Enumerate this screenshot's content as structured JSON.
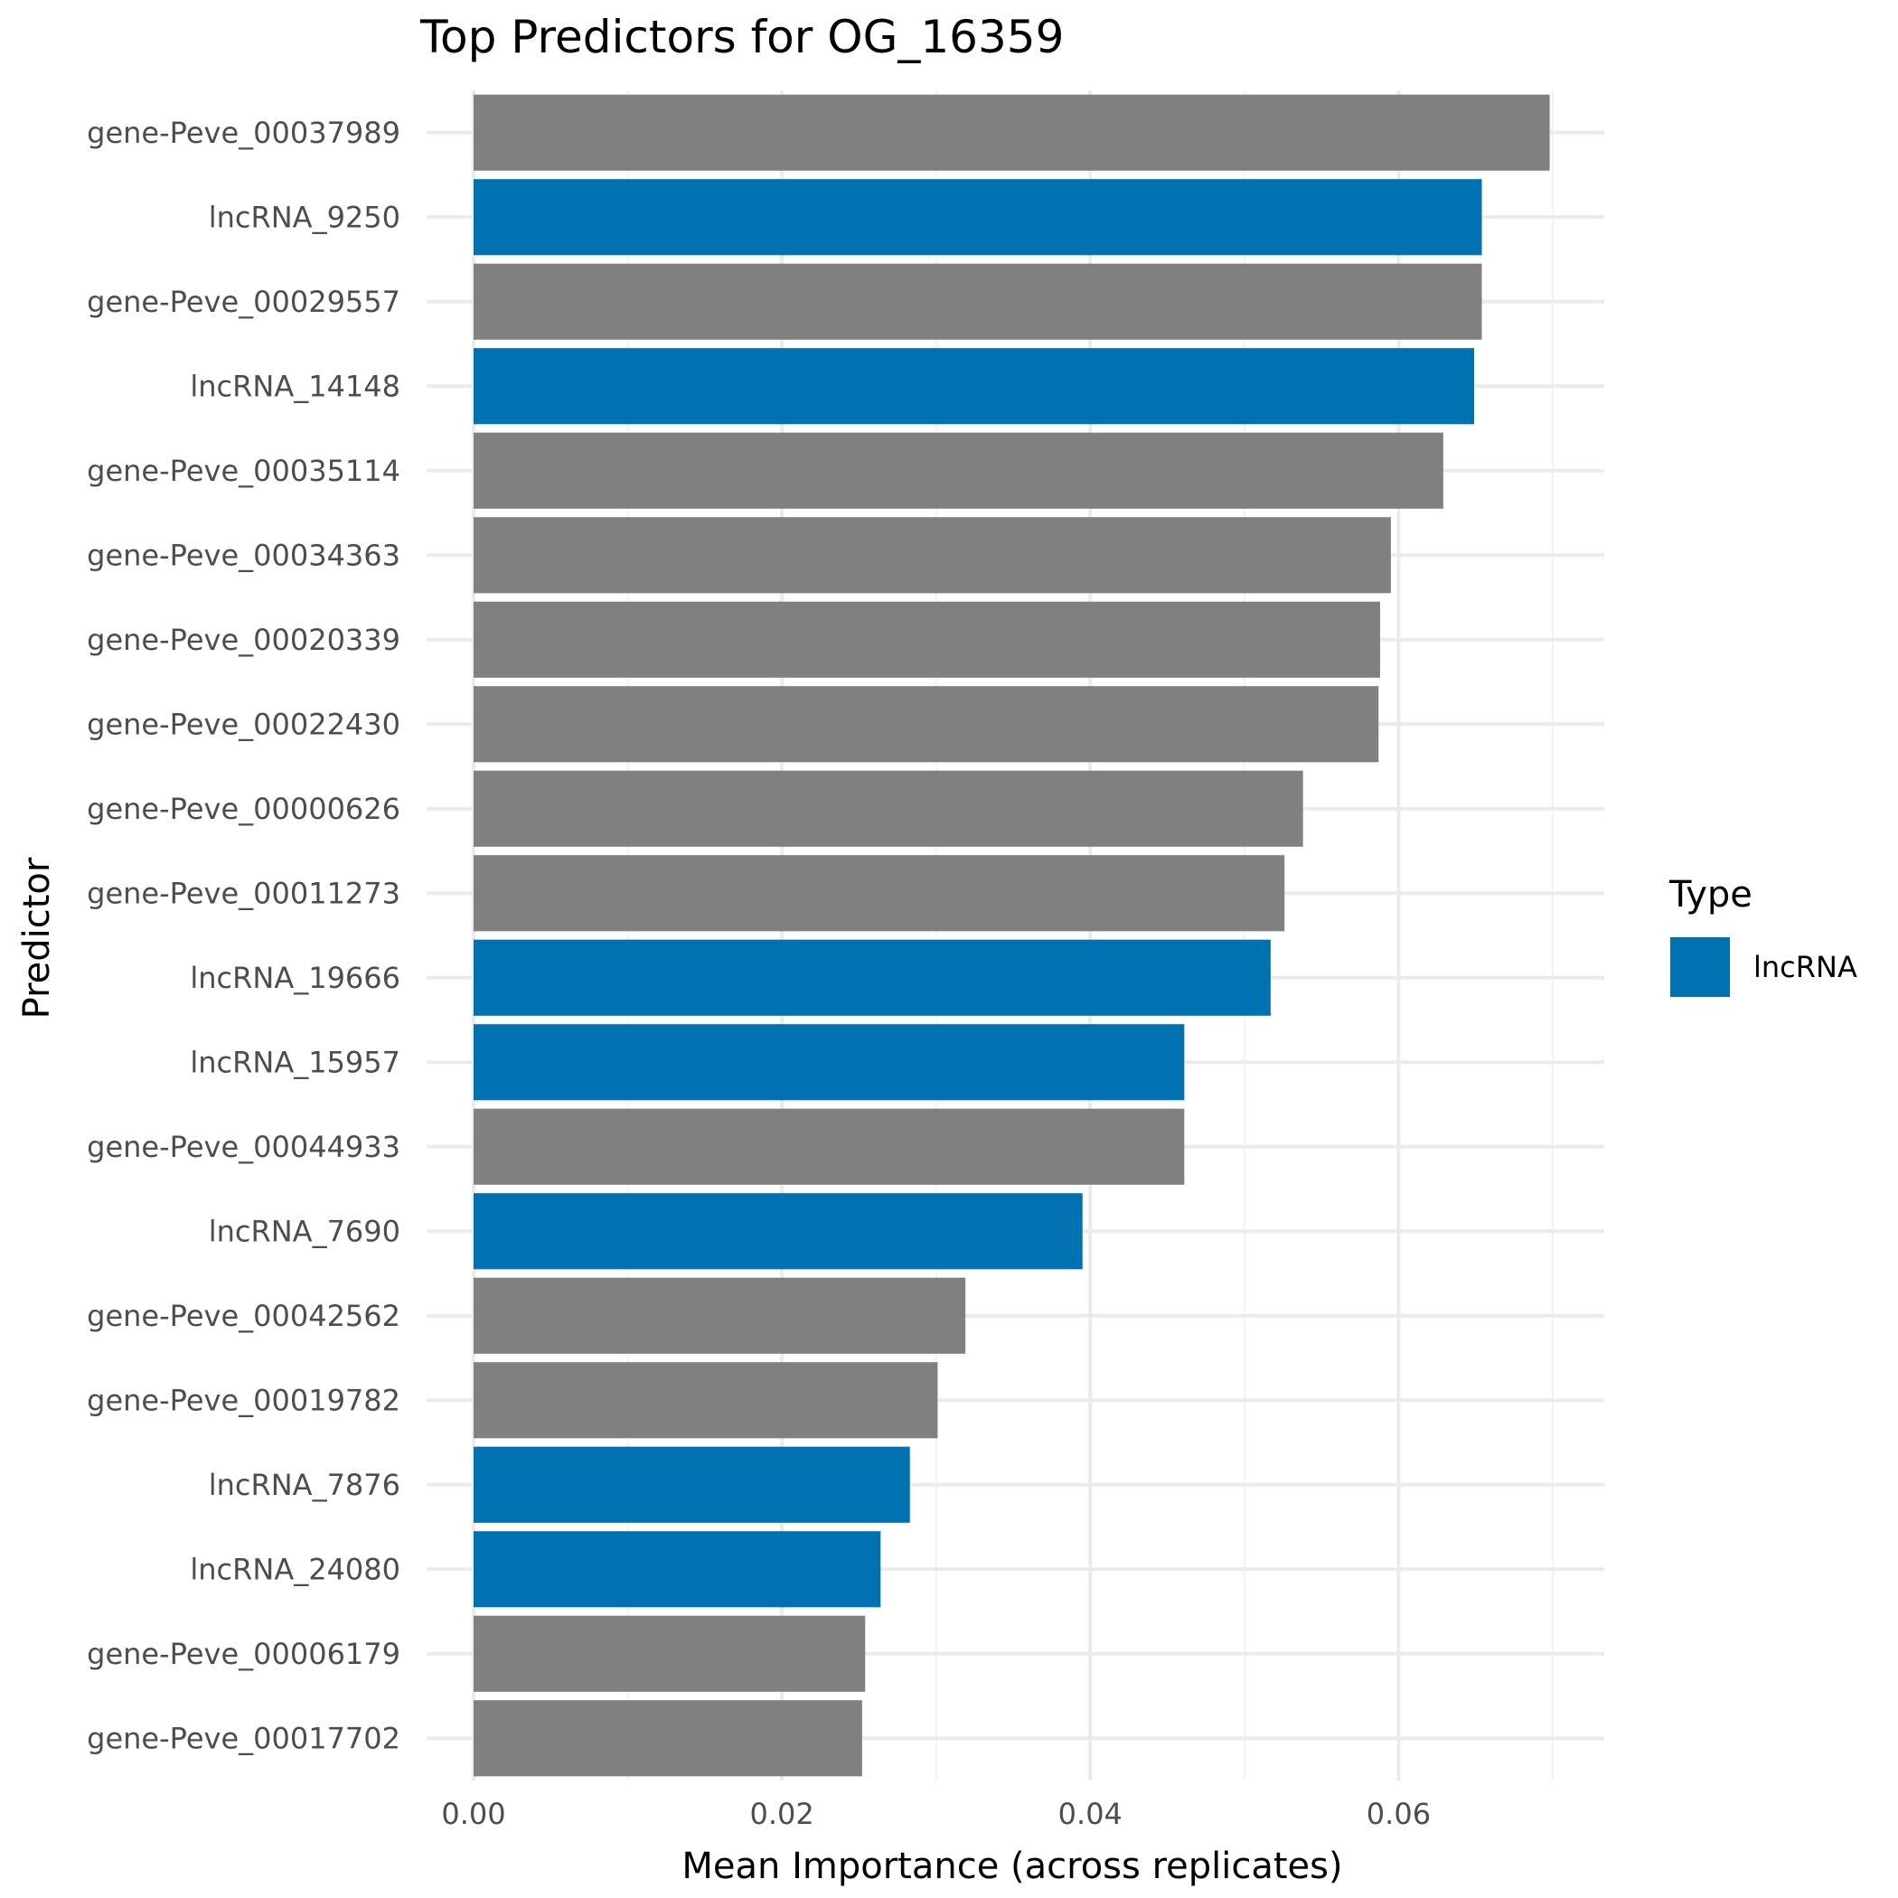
{
  "chart_data": {
    "type": "bar",
    "orientation": "horizontal",
    "title": "Top Predictors for OG_16359",
    "xlabel": "Mean Importance (across replicates)",
    "ylabel": "Predictor",
    "xlim": [
      0,
      0.0733
    ],
    "xticks": [
      0.0,
      0.02,
      0.04,
      0.06
    ],
    "xtick_labels": [
      "0.00",
      "0.02",
      "0.04",
      "0.06"
    ],
    "grid": true,
    "legend": {
      "title": "Type",
      "placement": "right",
      "entries": [
        {
          "label": "lncRNA",
          "color": "#0072B2"
        }
      ]
    },
    "colors": {
      "lncRNA": "#0072B2",
      "other": "#808080"
    },
    "categories": [
      "gene-Peve_00037989",
      "lncRNA_9250",
      "gene-Peve_00029557",
      "lncRNA_14148",
      "gene-Peve_00035114",
      "gene-Peve_00034363",
      "gene-Peve_00020339",
      "gene-Peve_00022430",
      "gene-Peve_00000626",
      "gene-Peve_00011273",
      "lncRNA_19666",
      "lncRNA_15957",
      "gene-Peve_00044933",
      "lncRNA_7690",
      "gene-Peve_00042562",
      "gene-Peve_00019782",
      "lncRNA_7876",
      "lncRNA_24080",
      "gene-Peve_00006179",
      "gene-Peve_00017702"
    ],
    "values": [
      0.0698,
      0.0654,
      0.0654,
      0.0649,
      0.0629,
      0.0595,
      0.0588,
      0.0587,
      0.0538,
      0.0526,
      0.0517,
      0.0461,
      0.0461,
      0.0395,
      0.0319,
      0.0301,
      0.0283,
      0.0264,
      0.0254,
      0.0252
    ],
    "types": [
      "other",
      "lncRNA",
      "other",
      "lncRNA",
      "other",
      "other",
      "other",
      "other",
      "other",
      "other",
      "lncRNA",
      "lncRNA",
      "other",
      "lncRNA",
      "other",
      "other",
      "lncRNA",
      "lncRNA",
      "other",
      "other"
    ]
  }
}
